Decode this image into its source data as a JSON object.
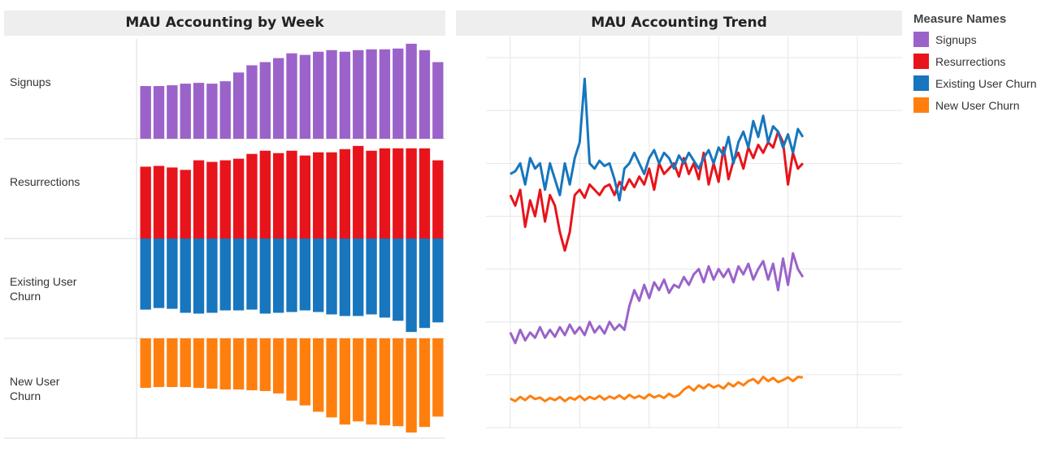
{
  "chart_data": [
    {
      "type": "bar",
      "title": "MAU Accounting by Week",
      "series": [
        {
          "name": "Signups",
          "color": "#9b63c9",
          "ylim": [
            0,
            125
          ],
          "values": [
            66,
            66,
            67,
            69,
            70,
            69,
            72,
            83,
            92,
            96,
            101,
            107,
            105,
            109,
            111,
            109,
            111,
            112,
            112,
            113,
            119,
            111,
            96
          ]
        },
        {
          "name": "Resurrections",
          "color": "#e8141b",
          "ylim": [
            0,
            125
          ],
          "values": [
            90,
            91,
            89,
            86,
            98,
            96,
            98,
            100,
            106,
            110,
            107,
            110,
            104,
            108,
            108,
            112,
            116,
            110,
            113,
            113,
            113,
            113,
            98
          ]
        },
        {
          "name": "Existing User Churn",
          "color": "#1776bd",
          "ylim": [
            -125,
            0
          ],
          "values": [
            -89,
            -87,
            -88,
            -93,
            -94,
            -93,
            -90,
            -90,
            -89,
            -94,
            -93,
            -92,
            -90,
            -92,
            -95,
            -97,
            -97,
            -95,
            -99,
            -103,
            -117,
            -112,
            -105
          ]
        },
        {
          "name": "New User Churn",
          "color": "#ff7f0e",
          "ylim": [
            -125,
            0
          ],
          "values": [
            -62,
            -61,
            -61,
            -61,
            -62,
            -63,
            -64,
            -64,
            -65,
            -66,
            -69,
            -78,
            -84,
            -92,
            -99,
            -108,
            -104,
            -108,
            -109,
            -110,
            -118,
            -111,
            -98
          ]
        }
      ]
    },
    {
      "type": "line",
      "title": "MAU Accounting Trend",
      "legend_title": "Measure Names",
      "x": [
        0,
        1,
        2,
        3,
        4,
        5,
        6,
        7,
        8,
        9,
        10,
        11,
        12,
        13,
        14,
        15,
        16,
        17,
        18,
        19,
        20,
        21,
        22,
        23,
        24,
        25,
        26,
        27,
        28,
        29,
        30,
        31,
        32,
        33,
        34,
        35,
        36,
        37,
        38,
        39,
        40,
        41,
        42,
        43,
        44,
        45,
        46,
        47,
        48,
        49,
        50,
        51,
        52,
        53,
        54,
        55,
        56,
        57,
        58,
        59
      ],
      "xlim": [
        -4.9,
        79
      ],
      "xticks": [
        0,
        14,
        28,
        42,
        56,
        70
      ],
      "ylim": [
        0,
        7.4
      ],
      "yticks": [
        0,
        1,
        2,
        3,
        4,
        5,
        6,
        7
      ],
      "grid": true,
      "series": [
        {
          "name": "Signups",
          "color": "#9b63c9",
          "values": [
            1.8,
            1.6,
            1.85,
            1.65,
            1.8,
            1.7,
            1.9,
            1.7,
            1.85,
            1.72,
            1.9,
            1.75,
            1.95,
            1.78,
            1.9,
            1.75,
            2.0,
            1.8,
            1.92,
            1.78,
            2.0,
            1.85,
            1.95,
            1.85,
            2.3,
            2.6,
            2.4,
            2.7,
            2.45,
            2.75,
            2.6,
            2.8,
            2.55,
            2.7,
            2.65,
            2.85,
            2.7,
            2.9,
            3.0,
            2.75,
            3.05,
            2.8,
            3.0,
            2.85,
            3.0,
            2.75,
            3.05,
            2.9,
            3.1,
            2.8,
            3.0,
            3.15,
            2.8,
            3.1,
            2.6,
            3.2,
            2.7,
            3.3,
            3.0,
            2.85
          ]
        },
        {
          "name": "Resurrections",
          "color": "#e8141b",
          "values": [
            4.4,
            4.2,
            4.5,
            3.8,
            4.3,
            4.0,
            4.5,
            3.9,
            4.4,
            4.2,
            3.7,
            3.35,
            3.7,
            4.4,
            4.5,
            4.35,
            4.6,
            4.5,
            4.4,
            4.55,
            4.6,
            4.4,
            4.65,
            4.5,
            4.7,
            4.55,
            4.75,
            4.6,
            4.9,
            4.5,
            5.0,
            4.8,
            4.9,
            5.0,
            4.75,
            5.1,
            4.8,
            5.0,
            4.7,
            5.2,
            4.6,
            5.0,
            4.65,
            5.3,
            4.7,
            5.05,
            5.2,
            4.9,
            5.3,
            5.1,
            5.35,
            5.2,
            5.4,
            5.3,
            5.6,
            5.4,
            4.6,
            5.2,
            4.9,
            5.0
          ]
        },
        {
          "name": "Existing User Churn",
          "color": "#1776bd",
          "values": [
            4.8,
            4.85,
            5.0,
            4.6,
            5.1,
            4.9,
            5.0,
            4.5,
            5.0,
            4.7,
            4.4,
            5.0,
            4.6,
            5.1,
            5.4,
            6.6,
            5.0,
            4.9,
            5.05,
            4.95,
            5.0,
            4.7,
            4.3,
            4.9,
            5.0,
            5.2,
            5.0,
            4.8,
            5.1,
            5.25,
            5.0,
            5.2,
            5.1,
            4.9,
            5.15,
            5.0,
            5.2,
            5.05,
            4.9,
            5.1,
            5.25,
            5.0,
            5.3,
            5.15,
            5.5,
            5.0,
            5.4,
            5.6,
            5.3,
            5.8,
            5.5,
            5.9,
            5.4,
            5.7,
            5.6,
            5.3,
            5.55,
            5.2,
            5.65,
            5.5
          ]
        },
        {
          "name": "New User Churn",
          "color": "#ff7f0e",
          "values": [
            0.55,
            0.5,
            0.58,
            0.52,
            0.6,
            0.54,
            0.57,
            0.5,
            0.56,
            0.52,
            0.58,
            0.5,
            0.57,
            0.53,
            0.6,
            0.52,
            0.58,
            0.54,
            0.6,
            0.53,
            0.59,
            0.55,
            0.61,
            0.54,
            0.62,
            0.56,
            0.6,
            0.55,
            0.63,
            0.57,
            0.61,
            0.56,
            0.64,
            0.58,
            0.62,
            0.72,
            0.78,
            0.7,
            0.8,
            0.74,
            0.82,
            0.76,
            0.8,
            0.74,
            0.84,
            0.78,
            0.86,
            0.8,
            0.88,
            0.92,
            0.84,
            0.96,
            0.88,
            0.94,
            0.86,
            0.9,
            0.95,
            0.88,
            0.96,
            0.95
          ]
        }
      ]
    }
  ]
}
